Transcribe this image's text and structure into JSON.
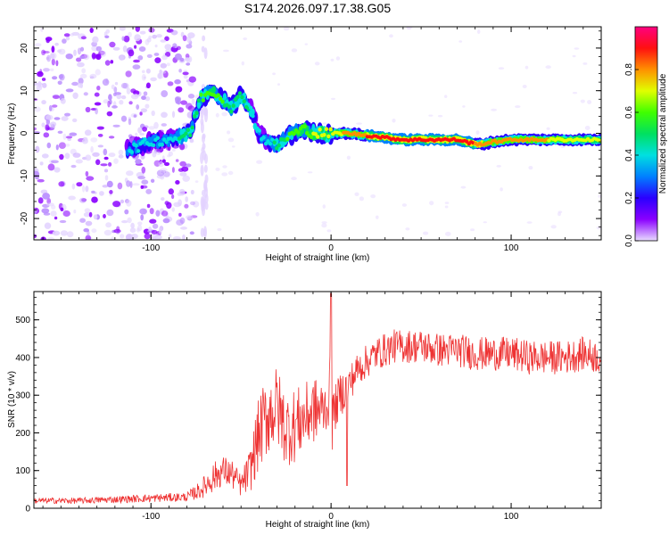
{
  "title": "S174.2026.097.17.38.G05",
  "chart_data": [
    {
      "type": "heatmap",
      "xlabel": "Height of straight line (km)",
      "ylabel": "Frequency (Hz)",
      "xlim": [
        -165,
        150
      ],
      "ylim": [
        -25,
        25
      ],
      "xticks": [
        -100,
        0,
        100
      ],
      "xtick_labels": [
        "-100",
        "0",
        "100"
      ],
      "yticks": [
        -20,
        -10,
        0,
        10,
        20
      ],
      "ytick_labels": [
        "-20",
        "-10",
        "0",
        "10",
        "20"
      ],
      "ridge": {
        "x": [
          -113,
          -100,
          -85,
          -78,
          -73,
          -66,
          -60,
          -55,
          -50,
          -45,
          -40,
          -35,
          -30,
          -25,
          -20,
          -15,
          -10,
          -5,
          0,
          10,
          20,
          40,
          60,
          70,
          80,
          85,
          90,
          100,
          110,
          120,
          150
        ],
        "y": [
          -4,
          -2,
          -1,
          0,
          8,
          10,
          8,
          6,
          9,
          6,
          0,
          -2,
          -3,
          -1,
          0,
          1,
          0,
          0,
          0,
          0,
          -0.5,
          -1.5,
          -1.5,
          -1.5,
          -2.5,
          -2.5,
          -2,
          -1.5,
          -1.5,
          -1.5,
          -1.5
        ],
        "amplitude": [
          0.3,
          0.35,
          0.4,
          0.5,
          0.5,
          0.55,
          0.5,
          0.5,
          0.45,
          0.4,
          0.4,
          0.35,
          0.45,
          0.5,
          0.55,
          0.6,
          0.6,
          0.65,
          0.6,
          0.75,
          0.8,
          0.9,
          0.9,
          0.85,
          0.8,
          0.8,
          0.75,
          0.75,
          0.75,
          0.7,
          0.6
        ]
      },
      "noise_region_x": [
        -165,
        -75
      ],
      "colorbar": {
        "label": "Normalized spectral amplitude",
        "range": [
          0,
          1
        ],
        "ticks": [
          0.0,
          0.2,
          0.4,
          0.6,
          0.8
        ],
        "tick_labels": [
          "0.0",
          "0.2",
          "0.4",
          "0.6",
          "0.8"
        ]
      }
    },
    {
      "type": "line",
      "xlabel": "Height of straight line (km)",
      "ylabel": "SNR (10 * v/v)",
      "xlim": [
        -165,
        150
      ],
      "ylim": [
        0,
        575
      ],
      "xticks": [
        -100,
        0,
        100
      ],
      "xtick_labels": [
        "-100",
        "0",
        "100"
      ],
      "yticks": [
        0,
        100,
        200,
        300,
        400,
        500
      ],
      "ytick_labels": [
        "0",
        "100",
        "200",
        "300",
        "400",
        "500"
      ],
      "series": [
        {
          "name": "SNR",
          "color": "#ee3333",
          "x": [
            -165,
            -140,
            -110,
            -80,
            -72,
            -66,
            -60,
            -55,
            -50,
            -45,
            -40,
            -35,
            -30,
            -25,
            -20,
            -15,
            -10,
            -5,
            -1,
            0,
            1,
            5,
            10,
            15,
            20,
            25,
            30,
            35,
            40,
            50,
            60,
            70,
            80,
            90,
            100,
            110,
            120,
            130,
            140,
            150
          ],
          "values": [
            20,
            20,
            25,
            30,
            50,
            80,
            100,
            90,
            60,
            100,
            200,
            250,
            270,
            210,
            220,
            240,
            260,
            260,
            280,
            330,
            250,
            300,
            330,
            370,
            390,
            410,
            420,
            430,
            430,
            430,
            420,
            420,
            410,
            410,
            410,
            400,
            400,
            400,
            410,
            400
          ],
          "noise": [
            8,
            8,
            10,
            12,
            25,
            40,
            40,
            40,
            30,
            60,
            100,
            110,
            110,
            100,
            100,
            90,
            90,
            80,
            60,
            250,
            60,
            60,
            50,
            45,
            45,
            45,
            45,
            45,
            45,
            45,
            45,
            45,
            45,
            45,
            45,
            45,
            45,
            45,
            45,
            45
          ]
        }
      ]
    }
  ]
}
